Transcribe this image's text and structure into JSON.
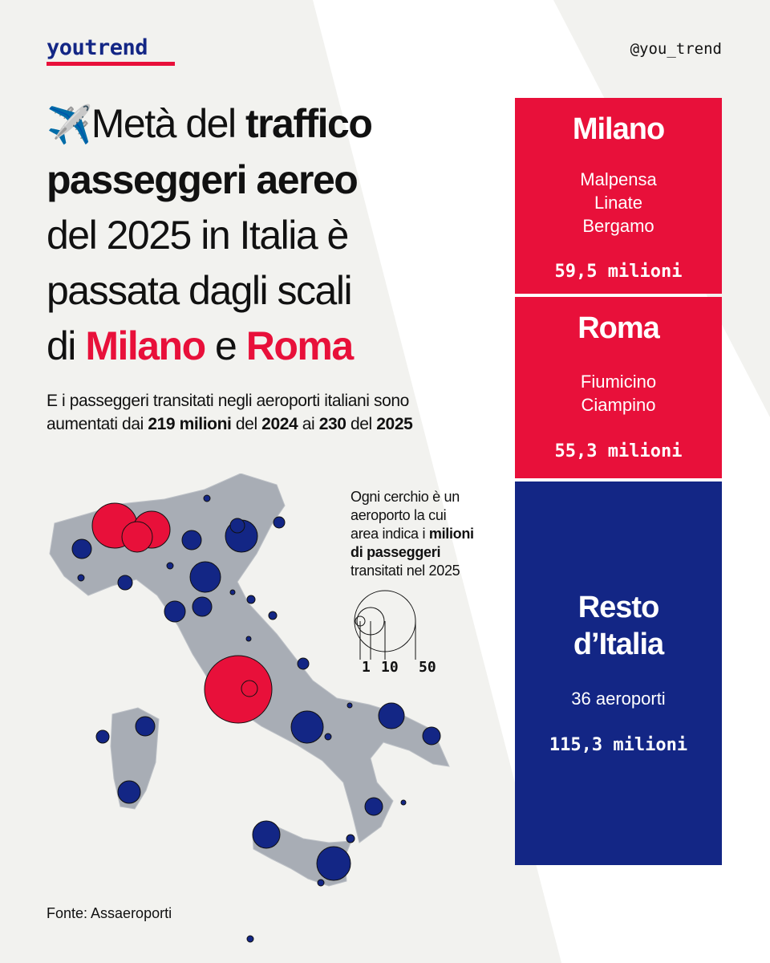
{
  "brand": {
    "logo": "youtrend",
    "handle": "@you_trend"
  },
  "title": {
    "emoji": "✈️",
    "part1": "Metà del ",
    "part2": "traffico",
    "part3": "passeggeri aereo",
    "part4": "del 2025 in Italia è",
    "part5": "passata dagli scali",
    "part6": "di ",
    "city1": "Milano",
    "part7": " e ",
    "city2": "Roma"
  },
  "subtitle": {
    "s1": "E i passeggeri transitati negli aeroporti italiani sono",
    "s2": "aumentati dai ",
    "s3": "219 milioni",
    "s4": " del ",
    "s5": "2024",
    "s6": " ai ",
    "s7": "230",
    "s8": " del ",
    "s9": "2025"
  },
  "panels": {
    "milano": {
      "city": "Milano",
      "airports": [
        "Malpensa",
        "Linate",
        "Bergamo"
      ],
      "value": "59,5 milioni"
    },
    "roma": {
      "city": "Roma",
      "airports": [
        "Fiumicino",
        "Ciampino"
      ],
      "value": "55,3 milioni"
    },
    "resto": {
      "city_line1": "Resto",
      "city_line2": "d’Italia",
      "airports": "36 aeroporti",
      "value": "115,3 milioni"
    }
  },
  "legend": {
    "l1": "Ogni cerchio è un",
    "l2": "aeroporto la cui",
    "l3": "area indica i ",
    "l3b": "milioni",
    "l4": "di passeggeri",
    "l5": "transitati nel 2025",
    "scale": [
      "1",
      "10",
      "50"
    ]
  },
  "source": "Fonte: Assaeroporti",
  "colors": {
    "red": "#e8103a",
    "blue": "#132685",
    "map": "#a8adb5",
    "background": "#f2f2ef"
  }
}
